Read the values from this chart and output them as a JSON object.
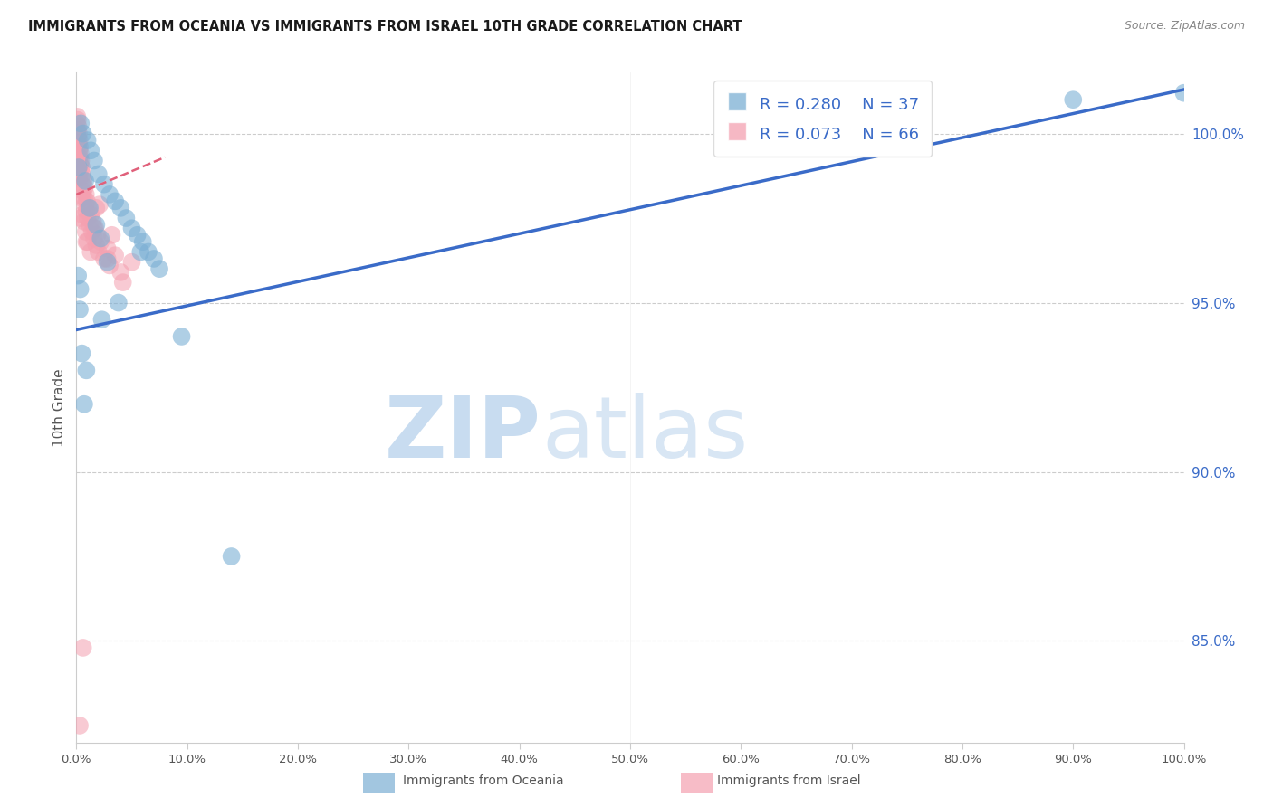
{
  "title": "IMMIGRANTS FROM OCEANIA VS IMMIGRANTS FROM ISRAEL 10TH GRADE CORRELATION CHART",
  "source": "Source: ZipAtlas.com",
  "ylabel": "10th Grade",
  "x_min": 0.0,
  "x_max": 100.0,
  "y_min": 82.0,
  "y_max": 101.8,
  "x_ticks": [
    0.0,
    10.0,
    20.0,
    30.0,
    40.0,
    50.0,
    60.0,
    70.0,
    80.0,
    90.0,
    100.0
  ],
  "x_tick_labels": [
    "0.0%",
    "10.0%",
    "20.0%",
    "30.0%",
    "40.0%",
    "50.0%",
    "60.0%",
    "70.0%",
    "80.0%",
    "90.0%",
    "100.0%"
  ],
  "y_ticks": [
    85.0,
    90.0,
    95.0,
    100.0
  ],
  "y_tick_labels": [
    "85.0%",
    "90.0%",
    "95.0%",
    "100.0%"
  ],
  "legend_r_blue": "R = 0.280",
  "legend_n_blue": "N = 37",
  "legend_r_pink": "R = 0.073",
  "legend_n_pink": "N = 66",
  "blue_color": "#7BAFD4",
  "pink_color": "#F4A0B0",
  "blue_line_color": "#3A6BC8",
  "pink_line_color": "#E0607A",
  "grid_color": "#CCCCCC",
  "watermark_zip": "ZIP",
  "watermark_atlas": "atlas",
  "watermark_color": "#C8DCF0",
  "legend_label_color": "#3A6BC8",
  "blue_trend_x0": 0.0,
  "blue_trend_y0": 94.2,
  "blue_trend_x1": 100.0,
  "blue_trend_y1": 101.3,
  "pink_trend_x0": 0.0,
  "pink_trend_y0": 98.2,
  "pink_trend_x1": 8.0,
  "pink_trend_y1": 99.3,
  "blue_scatter_x": [
    0.4,
    0.6,
    1.0,
    1.3,
    1.6,
    2.0,
    2.5,
    3.0,
    3.5,
    4.0,
    4.5,
    5.0,
    5.5,
    6.0,
    6.5,
    7.0,
    7.5,
    0.2,
    0.8,
    1.8,
    2.2,
    2.8,
    1.2,
    0.15,
    0.35,
    5.8,
    3.8,
    2.3,
    9.5,
    0.5,
    0.9,
    0.3,
    0.7,
    60.0,
    90.0,
    100.0,
    14.0
  ],
  "blue_scatter_y": [
    100.3,
    100.0,
    99.8,
    99.5,
    99.2,
    98.8,
    98.5,
    98.2,
    98.0,
    97.8,
    97.5,
    97.2,
    97.0,
    96.8,
    96.5,
    96.3,
    96.0,
    99.0,
    98.6,
    97.3,
    96.9,
    96.2,
    97.8,
    95.8,
    95.4,
    96.5,
    95.0,
    94.5,
    94.0,
    93.5,
    93.0,
    94.8,
    92.0,
    100.5,
    101.0,
    101.2,
    87.5
  ],
  "pink_scatter_x": [
    0.05,
    0.08,
    0.1,
    0.12,
    0.15,
    0.18,
    0.2,
    0.22,
    0.25,
    0.28,
    0.3,
    0.32,
    0.35,
    0.38,
    0.4,
    0.42,
    0.45,
    0.48,
    0.5,
    0.55,
    0.6,
    0.65,
    0.7,
    0.75,
    0.8,
    0.85,
    0.9,
    0.95,
    1.0,
    1.1,
    1.2,
    1.3,
    1.4,
    1.5,
    1.6,
    1.7,
    1.8,
    1.9,
    2.0,
    2.2,
    2.5,
    2.8,
    3.0,
    3.5,
    4.0,
    5.0,
    0.15,
    0.25,
    0.45,
    0.7,
    0.9,
    1.8,
    2.8,
    0.2,
    0.4,
    1.3,
    0.08,
    3.2,
    1.6,
    0.55,
    2.1,
    0.85,
    1.0,
    4.2,
    0.6,
    0.3
  ],
  "pink_scatter_y": [
    100.3,
    100.5,
    100.1,
    100.4,
    99.9,
    100.2,
    99.7,
    100.0,
    99.5,
    99.8,
    99.3,
    99.6,
    99.1,
    99.4,
    98.9,
    99.2,
    98.7,
    99.0,
    98.5,
    98.8,
    98.3,
    98.6,
    98.1,
    98.4,
    97.9,
    98.2,
    97.7,
    98.0,
    97.5,
    97.8,
    97.3,
    97.6,
    97.1,
    97.4,
    96.9,
    97.2,
    96.7,
    97.0,
    96.5,
    96.8,
    96.3,
    96.6,
    96.1,
    96.4,
    95.9,
    96.2,
    99.3,
    98.7,
    98.1,
    97.4,
    96.8,
    97.8,
    96.3,
    98.9,
    97.5,
    96.5,
    99.6,
    97.0,
    97.2,
    97.6,
    97.9,
    97.1,
    96.8,
    95.6,
    84.8,
    82.5
  ]
}
